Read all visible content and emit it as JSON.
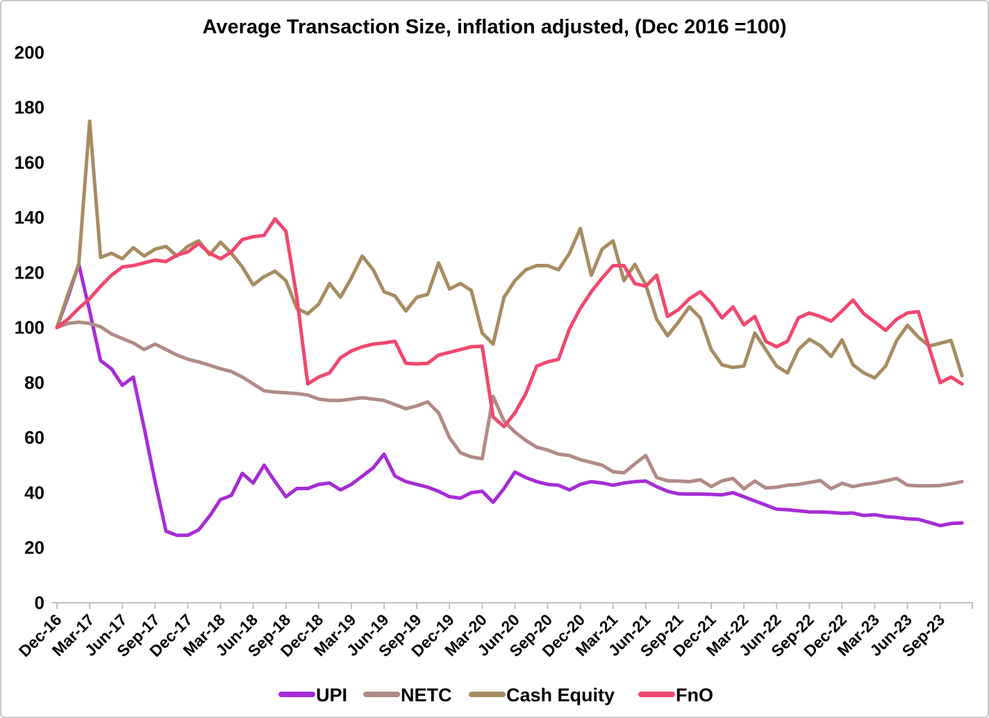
{
  "chart_data": {
    "type": "line",
    "title": "Average Transaction Size, inflation adjusted, (Dec 2016 =100)",
    "grid": "off",
    "legend_position": "bottom",
    "y_axis": {
      "min": 0,
      "max": 200,
      "step": 20
    },
    "x_tick_labels": [
      "Dec-16",
      "Mar-17",
      "Jun-17",
      "Sep-17",
      "Dec-17",
      "Mar-18",
      "Jun-18",
      "Sep-18",
      "Dec-18",
      "Mar-19",
      "Jun-19",
      "Sep-19",
      "Dec-19",
      "Mar-20",
      "Jun-20",
      "Sep-20",
      "Dec-20",
      "Mar-21",
      "Jun-21",
      "Sep-21",
      "Dec-21",
      "Mar-22",
      "Jun-22",
      "Sep-22",
      "Dec-22",
      "Mar-23",
      "Jun-23",
      "Sep-23"
    ],
    "categories": [
      "Dec-16",
      "Jan-17",
      "Feb-17",
      "Mar-17",
      "Apr-17",
      "May-17",
      "Jun-17",
      "Jul-17",
      "Aug-17",
      "Sep-17",
      "Oct-17",
      "Nov-17",
      "Dec-17",
      "Jan-18",
      "Feb-18",
      "Mar-18",
      "Apr-18",
      "May-18",
      "Jun-18",
      "Jul-18",
      "Aug-18",
      "Sep-18",
      "Oct-18",
      "Nov-18",
      "Dec-18",
      "Jan-19",
      "Feb-19",
      "Mar-19",
      "Apr-19",
      "May-19",
      "Jun-19",
      "Jul-19",
      "Aug-19",
      "Sep-19",
      "Oct-19",
      "Nov-19",
      "Dec-19",
      "Jan-20",
      "Feb-20",
      "Mar-20",
      "Apr-20",
      "May-20",
      "Jun-20",
      "Jul-20",
      "Aug-20",
      "Sep-20",
      "Oct-20",
      "Nov-20",
      "Dec-20",
      "Jan-21",
      "Feb-21",
      "Mar-21",
      "Apr-21",
      "May-21",
      "Jun-21",
      "Jul-21",
      "Aug-21",
      "Sep-21",
      "Oct-21",
      "Nov-21",
      "Dec-21",
      "Jan-22",
      "Feb-22",
      "Mar-22",
      "Apr-22",
      "May-22",
      "Jun-22",
      "Jul-22",
      "Aug-22",
      "Sep-22",
      "Oct-22",
      "Nov-22",
      "Dec-22",
      "Jan-23",
      "Feb-23",
      "Mar-23",
      "Apr-23",
      "May-23",
      "Jun-23",
      "Jul-23",
      "Aug-23",
      "Sep-23",
      "Oct-23",
      "Nov-23"
    ],
    "series": [
      {
        "name": "UPI",
        "color": "#A62CD6",
        "values": [
          100,
          111,
          123,
          106,
          88,
          85,
          79,
          82,
          63.5,
          44,
          26,
          24.5,
          24.5,
          26.5,
          31.5,
          37.5,
          39,
          47,
          43.5,
          50,
          44,
          38.5,
          41.5,
          41.5,
          43,
          43.5,
          41,
          43,
          46,
          49,
          54,
          46,
          44,
          43,
          42,
          40.5,
          38.5,
          38,
          40,
          40.5,
          36.5,
          41.5,
          47.5,
          45.5,
          44,
          43,
          42.7,
          41,
          43,
          44,
          43.5,
          42.7,
          43.5,
          44,
          44.2,
          42.2,
          40.5,
          39.6,
          39.5,
          39.5,
          39.4,
          39.2,
          40,
          38.5,
          37,
          35.5,
          34,
          33.8,
          33.4,
          33,
          33,
          32.8,
          32.5,
          32.6,
          31.7,
          32,
          31.3,
          31,
          30.5,
          30.3,
          29.2,
          28,
          28.8,
          29
        ]
      },
      {
        "name": "NETC",
        "color": "#B18A86",
        "values": [
          100,
          101.5,
          102,
          101.5,
          100.3,
          97.7,
          96,
          94.4,
          92,
          94,
          92,
          90,
          88.5,
          87.5,
          86.3,
          85,
          84,
          82,
          79.5,
          77,
          76.5,
          76.3,
          76,
          75.5,
          74,
          73.5,
          73.5,
          74,
          74.5,
          74,
          73.5,
          72,
          70.5,
          71.5,
          73,
          69,
          60,
          54.5,
          53,
          52.3,
          75,
          66,
          62,
          59,
          56.5,
          55.5,
          54,
          53.5,
          52,
          51,
          50,
          47.6,
          47.2,
          50.5,
          53.5,
          45.5,
          44.3,
          44.2,
          44,
          44.7,
          42.2,
          44.3,
          45.2,
          41.4,
          44.2,
          41.7,
          42,
          42.7,
          43,
          43.7,
          44.4,
          41.4,
          43.4,
          42.2,
          43,
          43.5,
          44.3,
          45.2,
          42.7,
          42.5,
          42.5,
          42.6,
          43.2,
          44
        ]
      },
      {
        "name": "Cash Equity",
        "color": "#A68C60",
        "values": [
          100,
          112,
          123,
          175,
          125.5,
          127,
          125,
          129,
          126,
          128.5,
          129.5,
          126,
          129.5,
          131.5,
          126.5,
          131,
          127,
          122,
          115.5,
          118.5,
          120.5,
          117,
          107,
          105,
          108.5,
          116,
          111,
          118,
          126,
          121,
          113,
          111.5,
          106,
          111,
          112,
          123.5,
          114,
          116,
          113.5,
          98,
          94,
          111,
          117,
          121,
          122.5,
          122.5,
          121,
          127,
          136,
          119,
          128.5,
          131.5,
          117,
          123,
          115.5,
          103,
          97,
          102,
          107.5,
          103.5,
          92,
          86.4,
          85.5,
          86,
          98,
          92,
          86,
          83.5,
          92,
          95.7,
          93.5,
          89.5,
          95.5,
          86.5,
          83.5,
          81.7,
          86,
          95.2,
          100.8,
          96.5,
          93.3,
          94.3,
          95.3,
          82.5
        ]
      },
      {
        "name": "FnO",
        "color": "#F2476E",
        "values": [
          100,
          103,
          107,
          110.5,
          115,
          119,
          122,
          122.5,
          123.5,
          124.5,
          124,
          126.3,
          127.5,
          130.5,
          127,
          125,
          127.5,
          132,
          133,
          133.5,
          139.5,
          135,
          111,
          79.5,
          82,
          83.5,
          89,
          91.5,
          93,
          94,
          94.4,
          95,
          87,
          86.8,
          87,
          90,
          91,
          92,
          93,
          93.2,
          67.5,
          64,
          69,
          76,
          86,
          87.5,
          88.5,
          99.5,
          107,
          113,
          118,
          122.5,
          122.5,
          116,
          115,
          119,
          104,
          106.5,
          110.5,
          113,
          109,
          103.5,
          107.5,
          101,
          104,
          95,
          93,
          95,
          103.5,
          105.3,
          104,
          102.3,
          106,
          110,
          105,
          102,
          99,
          103,
          105.3,
          105.8,
          92.5,
          80,
          82,
          79.5
        ]
      }
    ]
  }
}
